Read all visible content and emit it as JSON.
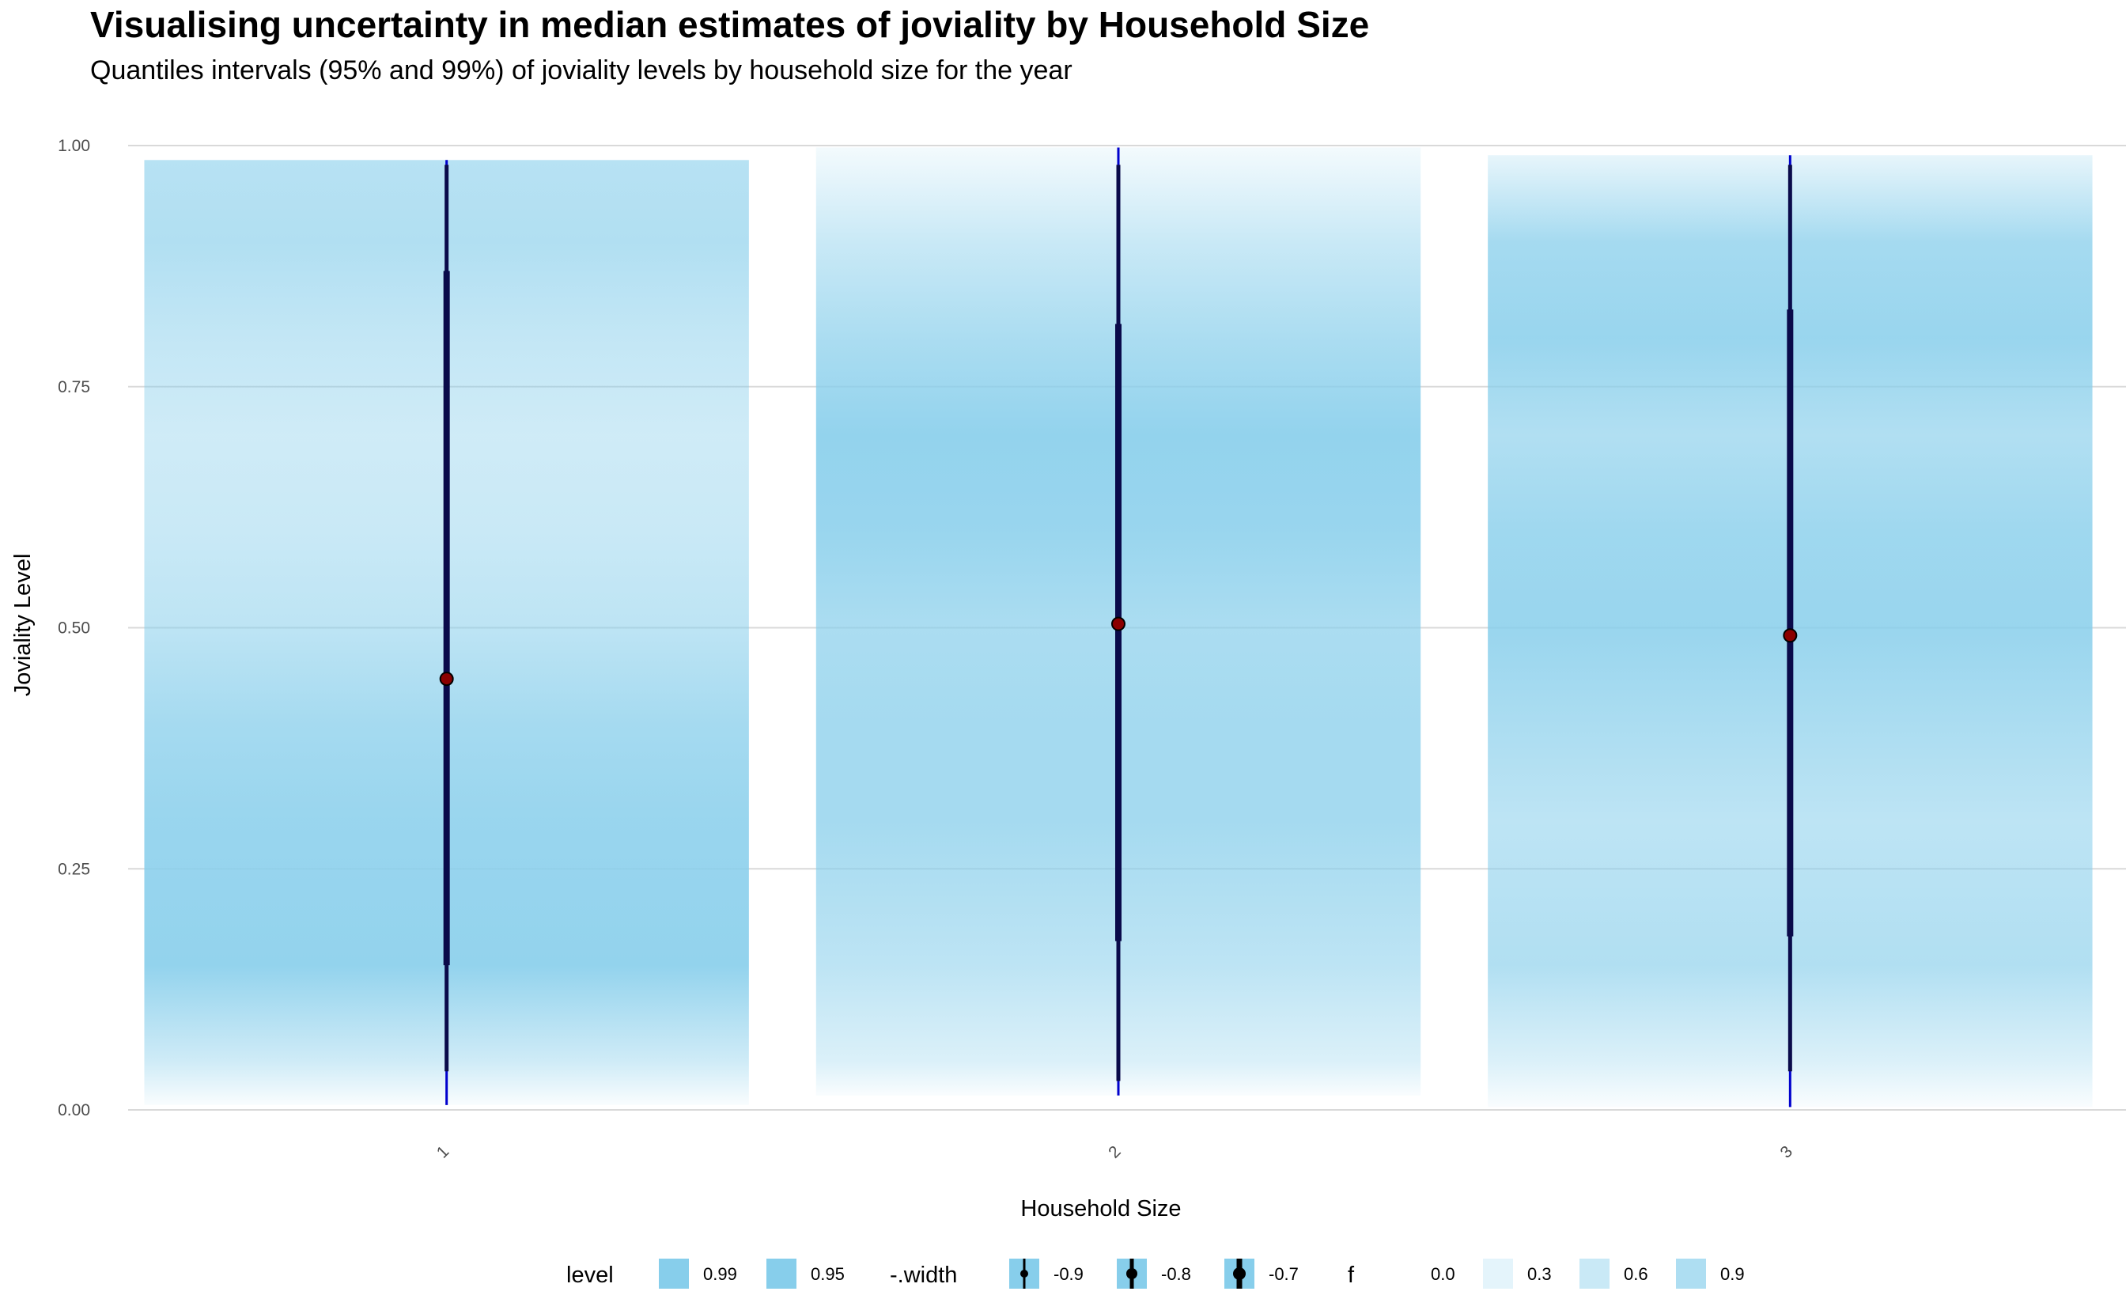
{
  "chart_data": {
    "type": "gradient-interval",
    "title": "Visualising uncertainty in median estimates of joviality by Household Size",
    "subtitle": "Quantiles intervals (95% and 99%) of joviality levels by household size for the year",
    "xlabel": "Household Size",
    "ylabel": "Joviality Level",
    "ylim": [
      0,
      1
    ],
    "yticks": [
      0,
      0.25,
      0.5,
      0.75,
      1
    ],
    "ytick_labels": [
      "0.00",
      "0.25",
      "0.50",
      "0.75",
      "1.00"
    ],
    "categories": [
      "1",
      "2",
      "3"
    ],
    "grid": true,
    "legend_position": "bottom",
    "colors": {
      "fill": "#87ceeb",
      "interval": "#0a0a4a",
      "interval_thin": "#0000cd",
      "point": "#8b0000",
      "grid": "#d9d9d9"
    },
    "series": [
      {
        "category": "1",
        "min": 0.005,
        "max": 0.985,
        "q99": [
          0.04,
          0.98
        ],
        "q95": [
          0.15,
          0.87
        ],
        "median": 0.447,
        "density": [
          [
            0,
            0.05
          ],
          [
            0.05,
            0.4
          ],
          [
            0.15,
            0.9
          ],
          [
            0.3,
            0.85
          ],
          [
            0.4,
            0.75
          ],
          [
            0.5,
            0.55
          ],
          [
            0.6,
            0.45
          ],
          [
            0.7,
            0.4
          ],
          [
            0.8,
            0.5
          ],
          [
            0.9,
            0.65
          ],
          [
            0.985,
            0.6
          ]
        ]
      },
      {
        "category": "2",
        "min": 0.015,
        "max": 0.998,
        "q99": [
          0.03,
          0.98
        ],
        "q95": [
          0.175,
          0.815
        ],
        "median": 0.504,
        "density": [
          [
            0,
            0.05
          ],
          [
            0.05,
            0.3
          ],
          [
            0.15,
            0.55
          ],
          [
            0.3,
            0.75
          ],
          [
            0.4,
            0.75
          ],
          [
            0.5,
            0.7
          ],
          [
            0.6,
            0.85
          ],
          [
            0.7,
            0.9
          ],
          [
            0.8,
            0.7
          ],
          [
            0.9,
            0.45
          ],
          [
            0.998,
            0.1
          ]
        ]
      },
      {
        "category": "3",
        "min": 0.003,
        "max": 0.99,
        "q99": [
          0.04,
          0.98
        ],
        "q95": [
          0.18,
          0.83
        ],
        "median": 0.492,
        "density": [
          [
            0,
            0.05
          ],
          [
            0.05,
            0.3
          ],
          [
            0.15,
            0.65
          ],
          [
            0.3,
            0.55
          ],
          [
            0.4,
            0.7
          ],
          [
            0.5,
            0.85
          ],
          [
            0.6,
            0.8
          ],
          [
            0.7,
            0.65
          ],
          [
            0.8,
            0.85
          ],
          [
            0.9,
            0.75
          ],
          [
            0.99,
            0.2
          ]
        ]
      }
    ],
    "legend": {
      "groups": [
        {
          "title": "level",
          "items": [
            {
              "label": "0.99",
              "kind": "fill"
            },
            {
              "label": "0.95",
              "kind": "fill"
            }
          ]
        },
        {
          "title": "-.width",
          "items": [
            {
              "label": "-0.9",
              "kind": "interval"
            },
            {
              "label": "-0.8",
              "kind": "interval"
            },
            {
              "label": "-0.7",
              "kind": "interval"
            }
          ]
        },
        {
          "title": "f",
          "items": [
            {
              "label": "0.0",
              "kind": "alpha",
              "alpha": 0.0
            },
            {
              "label": "0.3",
              "kind": "alpha",
              "alpha": 0.3
            },
            {
              "label": "0.6",
              "kind": "alpha",
              "alpha": 0.6
            },
            {
              "label": "0.9",
              "kind": "alpha",
              "alpha": 0.9
            }
          ]
        }
      ]
    }
  }
}
